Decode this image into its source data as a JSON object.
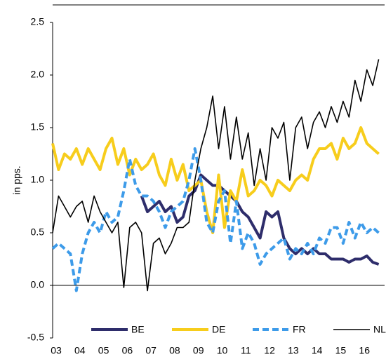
{
  "chart_data": {
    "type": "line",
    "y_label": "in pps.",
    "x": [
      3,
      3.25,
      3.5,
      3.75,
      4,
      4.25,
      4.5,
      4.75,
      5,
      5.25,
      5.5,
      5.75,
      6,
      6.25,
      6.5,
      6.75,
      7,
      7.25,
      7.5,
      7.75,
      8,
      8.25,
      8.5,
      8.75,
      9,
      9.25,
      9.5,
      9.75,
      10,
      10.25,
      10.5,
      10.75,
      11,
      11.25,
      11.5,
      11.75,
      12,
      12.25,
      12.5,
      12.75,
      13,
      13.25,
      13.5,
      13.75,
      14,
      14.25,
      14.5,
      14.75,
      15,
      15.25,
      15.5,
      15.75,
      16,
      16.25,
      16.5,
      16.75
    ],
    "series": [
      {
        "name": "BE",
        "color": "#2e2d6b",
        "style": "solid",
        "width": 4,
        "values": [
          null,
          null,
          null,
          null,
          null,
          null,
          null,
          null,
          null,
          null,
          null,
          null,
          null,
          null,
          null,
          0.85,
          0.7,
          0.75,
          0.8,
          0.7,
          0.75,
          0.6,
          0.65,
          0.85,
          0.9,
          1.05,
          1.0,
          0.95,
          0.95,
          0.9,
          0.85,
          0.8,
          0.7,
          0.65,
          0.55,
          0.45,
          0.7,
          0.65,
          0.7,
          0.45,
          0.35,
          0.3,
          0.35,
          0.3,
          0.35,
          0.3,
          0.3,
          0.25,
          0.25,
          0.25,
          0.22,
          0.25,
          0.25,
          0.28,
          0.22,
          0.2
        ]
      },
      {
        "name": "DE",
        "color": "#f7cd1c",
        "style": "solid",
        "width": 4,
        "values": [
          1.35,
          1.1,
          1.25,
          1.2,
          1.3,
          1.15,
          1.3,
          1.2,
          1.1,
          1.3,
          1.4,
          1.15,
          1.3,
          1.05,
          1.2,
          1.1,
          1.15,
          1.25,
          1.05,
          0.95,
          1.2,
          1.0,
          1.15,
          0.9,
          0.95,
          1.0,
          0.7,
          0.5,
          1.05,
          0.55,
          0.9,
          0.8,
          1.1,
          0.85,
          0.9,
          1.0,
          0.95,
          0.85,
          1.0,
          0.95,
          0.9,
          1.0,
          1.05,
          1.0,
          1.2,
          1.3,
          1.3,
          1.35,
          1.2,
          1.4,
          1.3,
          1.35,
          1.5,
          1.35,
          1.3,
          1.25
        ]
      },
      {
        "name": "FR",
        "color": "#3d9be9",
        "style": "dashed",
        "width": 4,
        "values": [
          0.35,
          0.4,
          0.35,
          0.3,
          -0.05,
          0.3,
          0.5,
          0.6,
          0.5,
          0.7,
          0.6,
          0.65,
          0.9,
          1.2,
          0.95,
          0.85,
          0.85,
          0.8,
          0.7,
          0.55,
          0.7,
          0.75,
          0.8,
          1.0,
          1.3,
          1.0,
          0.6,
          0.5,
          0.8,
          0.9,
          0.4,
          0.8,
          0.35,
          0.5,
          0.4,
          0.2,
          0.3,
          0.35,
          0.4,
          0.45,
          0.25,
          0.35,
          0.3,
          0.4,
          0.3,
          0.45,
          0.4,
          0.55,
          0.55,
          0.4,
          0.6,
          0.45,
          0.6,
          0.5,
          0.55,
          0.5
        ]
      },
      {
        "name": "NL",
        "color": "#000000",
        "style": "solid",
        "width": 1.6,
        "values": [
          0.5,
          0.85,
          0.75,
          0.65,
          0.75,
          0.8,
          0.6,
          0.85,
          0.7,
          0.6,
          0.5,
          0.6,
          -0.02,
          0.55,
          0.6,
          0.5,
          -0.05,
          0.4,
          0.45,
          0.3,
          0.4,
          0.55,
          0.55,
          0.6,
          1.0,
          1.3,
          1.5,
          1.8,
          1.3,
          1.7,
          1.2,
          1.6,
          1.2,
          1.45,
          0.95,
          1.3,
          1.0,
          1.5,
          1.4,
          1.55,
          1.0,
          1.5,
          1.6,
          1.3,
          1.55,
          1.65,
          1.5,
          1.7,
          1.55,
          1.75,
          1.6,
          1.95,
          1.75,
          2.05,
          1.9,
          2.15
        ]
      }
    ],
    "xlim": [
      3,
      17
    ],
    "xticks": [
      {
        "value": 3,
        "label": "03"
      },
      {
        "value": 4,
        "label": "04"
      },
      {
        "value": 5,
        "label": "05"
      },
      {
        "value": 6,
        "label": "06"
      },
      {
        "value": 7,
        "label": "07"
      },
      {
        "value": 8,
        "label": "08"
      },
      {
        "value": 9,
        "label": "09"
      },
      10,
      11,
      12,
      13,
      14,
      15,
      16
    ],
    "ylim": [
      -0.5,
      2.5
    ],
    "yticks": [
      -0.5,
      {
        "value": 0,
        "label": "0.0"
      },
      0.5,
      {
        "value": 1,
        "label": "1.0"
      },
      1.5,
      {
        "value": 2,
        "label": "2.0"
      },
      2.5
    ],
    "legend": "bottom"
  }
}
